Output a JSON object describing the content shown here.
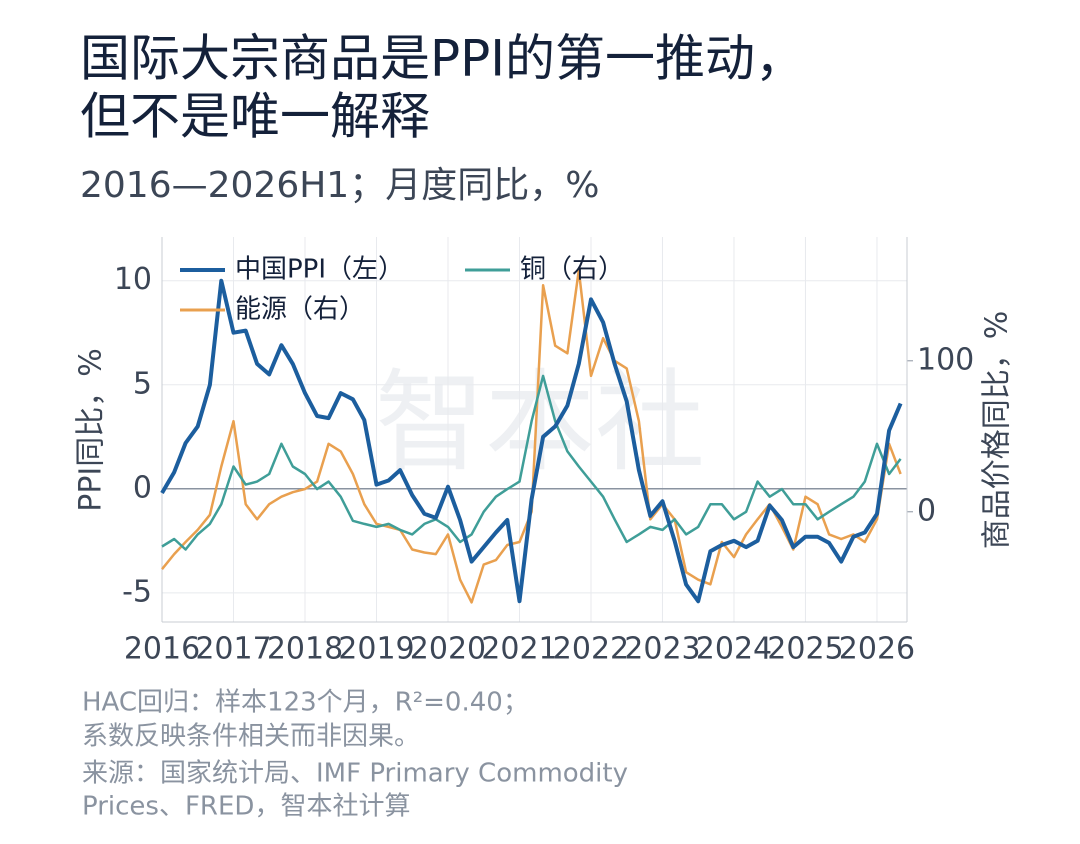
{
  "chart_data": {
    "type": "line",
    "title": [
      "国际大宗商品是PPI的第一推动，",
      "但不是唯一解释"
    ],
    "subtitle": "2016—2026H1；月度同比，%",
    "watermark": "智本社",
    "y_label": "PPI同比，%",
    "y2_label": "商品价格同比，%",
    "notes": [
      "HAC回归：样本123个月，R²=0.40；",
      "系数反映条件相关而非因果。",
      "来源：国家统计局、IMF Primary Commodity",
      "Prices、FRED，智本社计算"
    ],
    "x": [
      2016.0,
      2016.17,
      2016.33,
      2016.5,
      2016.67,
      2016.83,
      2017.0,
      2017.17,
      2017.33,
      2017.5,
      2017.67,
      2017.83,
      2018.0,
      2018.17,
      2018.33,
      2018.5,
      2018.67,
      2018.83,
      2019.0,
      2019.17,
      2019.33,
      2019.5,
      2019.67,
      2019.83,
      2020.0,
      2020.17,
      2020.33,
      2020.5,
      2020.67,
      2020.83,
      2021.0,
      2021.17,
      2021.33,
      2021.5,
      2021.67,
      2021.83,
      2022.0,
      2022.17,
      2022.33,
      2022.5,
      2022.67,
      2022.83,
      2023.0,
      2023.17,
      2023.33,
      2023.5,
      2023.67,
      2023.83,
      2024.0,
      2024.17,
      2024.33,
      2024.5,
      2024.67,
      2024.83,
      2025.0,
      2025.17,
      2025.33,
      2025.5,
      2025.67,
      2025.83,
      2026.0,
      2026.17,
      2026.33
    ],
    "xlim": [
      2016,
      2026.42
    ],
    "xticks": [
      2016,
      2017,
      2018,
      2019,
      2020,
      2021,
      2022,
      2023,
      2024,
      2025,
      2026
    ],
    "ylim": [
      -6.4,
      12.1
    ],
    "yticks": [
      -5,
      0,
      5,
      10
    ],
    "y2lim": [
      -73,
      182
    ],
    "y2ticks": [
      0,
      100
    ],
    "grid": true,
    "legend": "upper left",
    "series": [
      {
        "name": "中国PPI（左）",
        "color": "#1c5e9e",
        "axis": "y",
        "values": [
          -0.2,
          0.8,
          2.2,
          3.0,
          5.0,
          10.0,
          7.5,
          7.6,
          6.0,
          5.5,
          6.9,
          6.0,
          4.6,
          3.5,
          3.4,
          4.6,
          4.3,
          3.3,
          0.2,
          0.4,
          0.9,
          -0.3,
          -1.2,
          -1.4,
          0.1,
          -1.5,
          -3.5,
          -2.8,
          -2.1,
          -1.5,
          -5.4,
          -0.5,
          2.5,
          3.0,
          4.0,
          6.0,
          9.1,
          8.0,
          6.0,
          4.2,
          0.9,
          -1.3,
          -0.6,
          -2.5,
          -4.6,
          -5.4,
          -3.0,
          -2.7,
          -2.5,
          -2.8,
          -2.5,
          -0.8,
          -1.5,
          -2.8,
          -2.3,
          -2.3,
          -2.6,
          -3.5,
          -2.3,
          -2.1,
          -1.2,
          2.8,
          4.1
        ]
      },
      {
        "name": "铜（右）",
        "color": "#3f9e98",
        "axis": "y2",
        "values": [
          -23,
          -18,
          -25,
          -15,
          -8,
          5,
          30,
          18,
          20,
          25,
          45,
          30,
          25,
          15,
          20,
          10,
          -6,
          -8,
          -10,
          -8,
          -12,
          -15,
          -8,
          -5,
          -10,
          -20,
          -15,
          0,
          10,
          15,
          20,
          60,
          90,
          60,
          40,
          30,
          20,
          10,
          -5,
          -20,
          -15,
          -10,
          -12,
          -5,
          -15,
          -10,
          5,
          5,
          -5,
          0,
          20,
          10,
          15,
          5,
          5,
          -5,
          0,
          5,
          10,
          20,
          45,
          25,
          35
        ]
      },
      {
        "name": "能源（右）",
        "color": "#e9a04f",
        "axis": "y2",
        "values": [
          -38,
          -28,
          -20,
          -12,
          -2,
          30,
          60,
          5,
          -5,
          5,
          10,
          13,
          15,
          20,
          45,
          40,
          25,
          5,
          -8,
          -10,
          -12,
          -25,
          -27,
          -28,
          -15,
          -45,
          -60,
          -35,
          -32,
          -22,
          -20,
          0,
          150,
          110,
          105,
          160,
          90,
          115,
          100,
          95,
          60,
          -5,
          5,
          -5,
          -40,
          -45,
          -48,
          -20,
          -30,
          -15,
          -5,
          5,
          -10,
          -25,
          10,
          5,
          -15,
          -18,
          -15,
          -20,
          -5,
          45,
          25
        ]
      }
    ]
  }
}
